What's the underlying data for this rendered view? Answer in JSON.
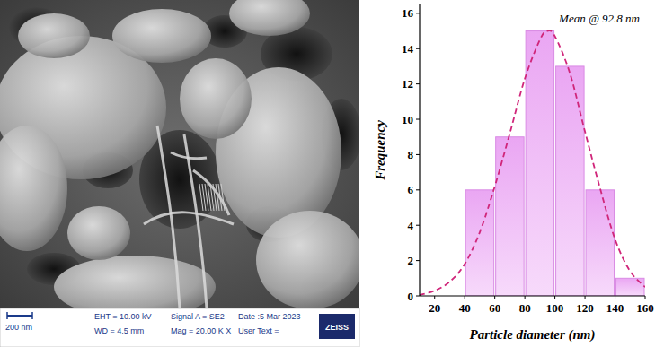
{
  "chart_data": {
    "type": "histogram",
    "annotation": "Mean @ 92.8 nm",
    "x_label": "Particle diameter (nm)",
    "y_label": "Frequency",
    "bins": [
      40,
      60,
      80,
      100,
      120,
      140,
      160
    ],
    "values": [
      6,
      9,
      15,
      13,
      6,
      1
    ],
    "color": "#eaa6f3",
    "fit_curve": {
      "type": "line",
      "color": "#d0267a",
      "line_style": "dashed",
      "x": [
        10,
        20,
        30,
        40,
        50,
        60,
        70,
        80,
        90,
        95,
        100,
        110,
        120,
        130,
        140,
        150,
        160
      ],
      "values": [
        0.05,
        0.3,
        0.8,
        1.8,
        3.6,
        6.2,
        9.2,
        12.3,
        14.5,
        15,
        14.7,
        12.6,
        9.3,
        6.1,
        3.2,
        1.4,
        0.5
      ]
    },
    "xlim": [
      10,
      160
    ],
    "xticks": [
      20,
      40,
      60,
      80,
      100,
      120,
      140,
      160
    ],
    "ylim": [
      0,
      16.5
    ],
    "yticks": [
      0,
      2,
      4,
      6,
      8,
      10,
      12,
      14,
      16
    ],
    "grid": false
  },
  "micrograph": {
    "scale_bar": "200 nm",
    "eht": "EHT = 10.00 kV",
    "wd": "WD = 4.5 mm",
    "signal": "Signal A = SE2",
    "mag": "Mag = 20.00 K X",
    "date": "Date :5 Mar 2023",
    "user_text": "User Text =",
    "logo": "ZEISS"
  }
}
